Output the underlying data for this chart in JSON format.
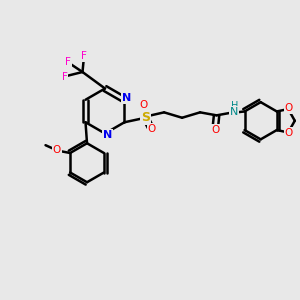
{
  "bg_color": "#e8e8e8",
  "line_color": "#000000",
  "bond_width": 1.8,
  "atom_colors": {
    "N": "#0000ee",
    "O": "#ff0000",
    "S": "#ccaa00",
    "F": "#ff00cc",
    "H": "#008888",
    "C": "#000000"
  }
}
